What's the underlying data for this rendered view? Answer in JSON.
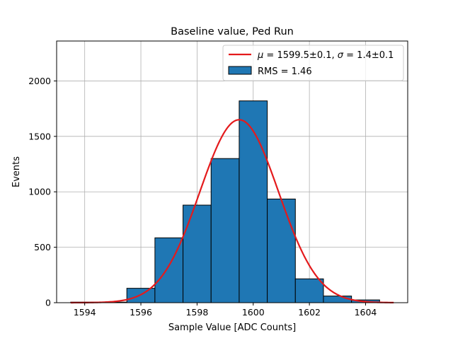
{
  "chart_data": {
    "type": "bar",
    "title": "Baseline value, Ped Run",
    "xlabel": "Sample Value [ADC Counts]",
    "ylabel": "Events",
    "xlim": [
      1593,
      1605.5
    ],
    "ylim": [
      0,
      2360
    ],
    "grid": true,
    "legend_position": "top-right",
    "xticks": [
      1594,
      1596,
      1598,
      1600,
      1602,
      1604
    ],
    "yticks": [
      0,
      500,
      1000,
      1500,
      2000
    ],
    "histogram": {
      "name": "RMS = 1.46",
      "color": "#1f77b4",
      "bin_edges": [
        1593.5,
        1594.5,
        1595.5,
        1596.5,
        1597.5,
        1598.5,
        1599.5,
        1600.5,
        1601.5,
        1602.5,
        1603.5,
        1604.5
      ],
      "counts": [
        5,
        5,
        130,
        585,
        880,
        1300,
        1820,
        935,
        215,
        60,
        25
      ]
    },
    "fit": {
      "name_parts": {
        "mu_sym": "μ",
        "mu_text": " = 1599.5±0.1, ",
        "sigma_sym": "σ",
        "sigma_text": " = 1.4±0.1"
      },
      "color": "#e41a1c",
      "mu": 1599.5,
      "sigma": 1.4,
      "amplitude": 1650,
      "x_range": [
        1593.5,
        1605
      ]
    }
  }
}
